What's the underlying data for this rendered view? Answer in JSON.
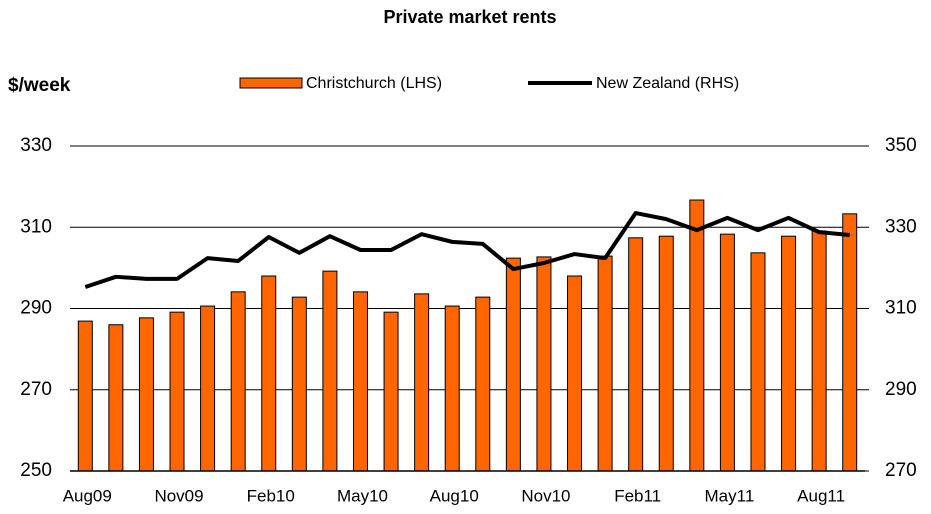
{
  "chart_data": {
    "type": "bar-line",
    "title": "Private market rents",
    "y_label": "$/week",
    "categories": [
      "Aug09",
      null,
      null,
      "Nov09",
      null,
      null,
      "Feb10",
      null,
      null,
      "May10",
      null,
      null,
      "Aug10",
      null,
      null,
      "Nov10",
      null,
      null,
      "Feb11",
      null,
      null,
      "May11",
      null,
      null,
      "Aug11",
      null
    ],
    "series": [
      {
        "name": "Christchurch (LHS)",
        "type": "bar",
        "color": "#ff6600",
        "values": [
          286.9,
          286,
          287.7,
          289.1,
          290.6,
          294.1,
          298,
          292.8,
          299.2,
          294.1,
          289.1,
          293.6,
          290.6,
          292.8,
          302.4,
          302.7,
          298,
          302.9,
          307.4,
          307.8,
          316.7,
          308.3,
          303.7,
          307.8,
          309.1,
          313.3
        ]
      },
      {
        "name": "New Zealand (RHS)",
        "type": "line",
        "axis": "y2",
        "color": "#000000",
        "values": [
          315.3,
          317.8,
          317.3,
          317.3,
          322.4,
          321.7,
          327.6,
          323.7,
          327.8,
          324.4,
          324.4,
          328.3,
          326.4,
          325.9,
          319.7,
          321.2,
          323.4,
          322.4,
          333.5,
          332,
          329.3,
          332.3,
          329.3,
          332.3,
          328.8,
          328.1
        ]
      }
    ],
    "ylim": [
      250,
      330
    ],
    "yticks": [
      250,
      270,
      290,
      310,
      330
    ],
    "y2lim": [
      270,
      350
    ],
    "y2ticks": [
      270,
      290,
      310,
      330,
      350
    ],
    "grid": true
  }
}
